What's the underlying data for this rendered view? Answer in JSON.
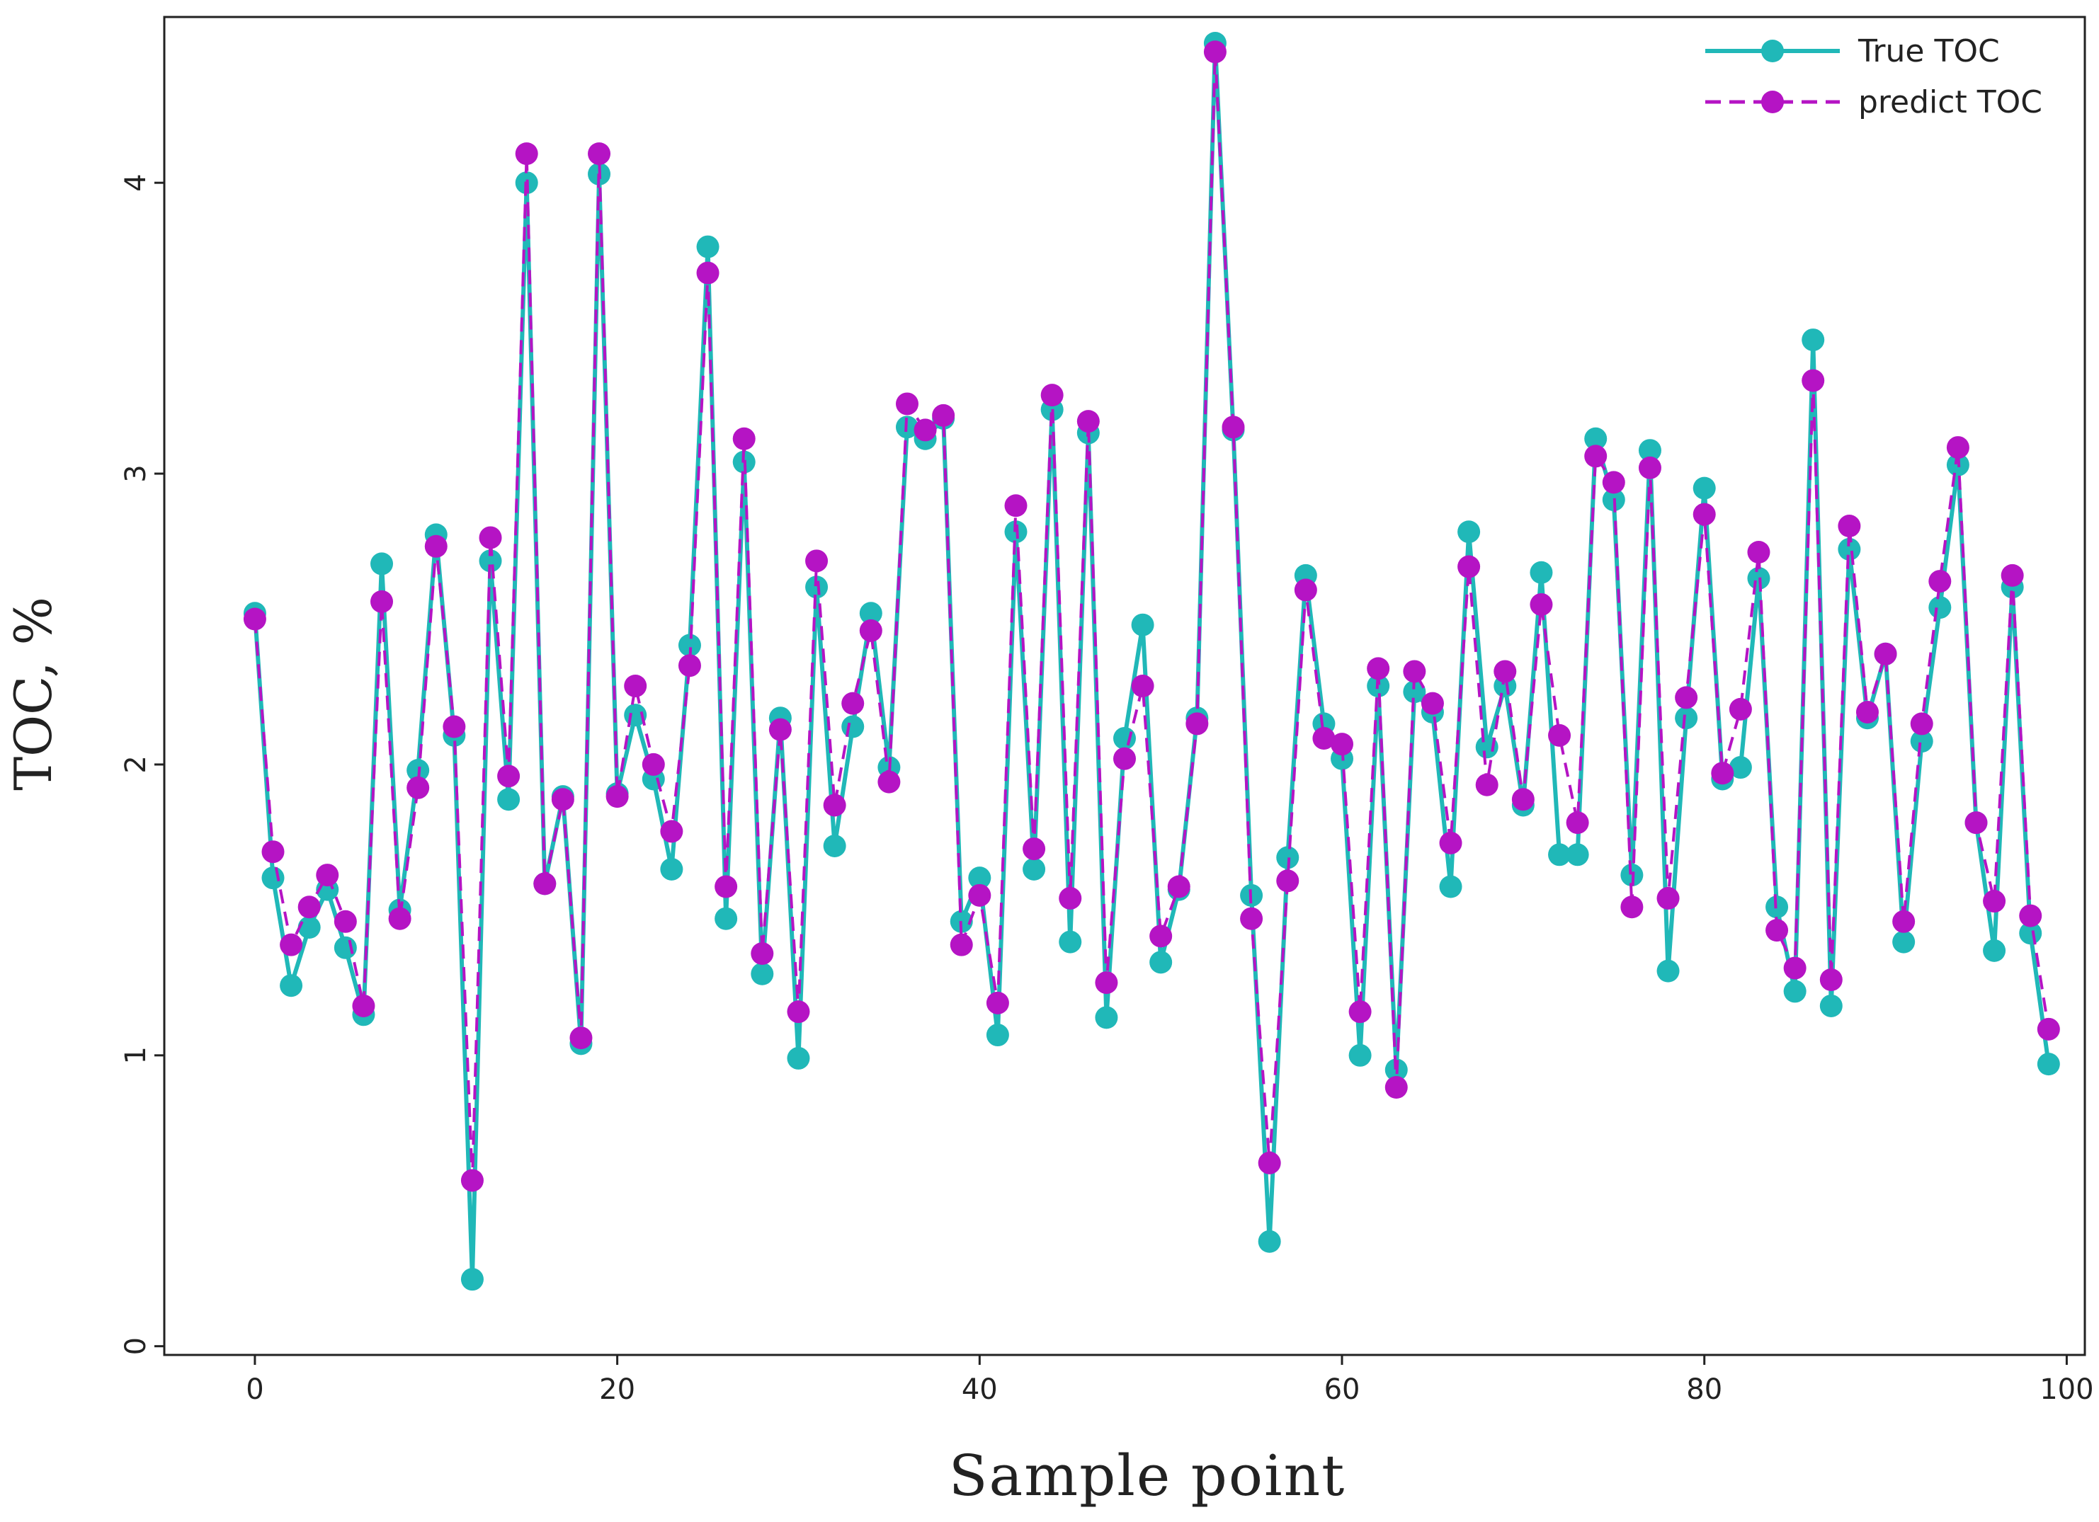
{
  "chart_data": {
    "type": "line",
    "title": "",
    "xlabel": "Sample point",
    "ylabel": "TOC, %",
    "xlim": [
      -5,
      101
    ],
    "ylim": [
      -0.03,
      4.57
    ],
    "xticks": [
      0,
      20,
      40,
      60,
      80,
      100
    ],
    "xtick_labels": [
      "0",
      "20",
      "40",
      "60",
      "80",
      "100"
    ],
    "yticks": [
      0,
      1,
      2,
      3,
      4
    ],
    "ytick_labels": [
      "0",
      "1",
      "2",
      "3",
      "4"
    ],
    "grid": false,
    "legend_position": "top-right",
    "series": [
      {
        "name": "True TOC",
        "color": "#20b8b8",
        "style": "solid",
        "values": [
          2.52,
          1.61,
          1.24,
          1.44,
          1.57,
          1.37,
          1.14,
          2.69,
          1.5,
          1.98,
          2.79,
          2.1,
          0.23,
          2.7,
          1.88,
          4.0,
          1.59,
          1.89,
          1.04,
          4.03,
          1.9,
          2.17,
          1.95,
          1.64,
          2.41,
          3.78,
          1.47,
          3.04,
          1.28,
          2.16,
          0.99,
          2.61,
          1.72,
          2.13,
          2.52,
          1.99,
          3.16,
          3.12,
          3.19,
          1.46,
          1.61,
          1.07,
          2.8,
          1.64,
          3.22,
          1.39,
          3.14,
          1.13,
          2.09,
          2.48,
          1.32,
          1.57,
          2.16,
          4.48,
          3.15,
          1.55,
          0.36,
          1.68,
          2.65,
          2.14,
          2.02,
          1.0,
          2.27,
          0.95,
          2.25,
          2.18,
          1.58,
          2.8,
          2.06,
          2.27,
          1.86,
          2.66,
          1.69,
          1.69,
          3.12,
          2.91,
          1.62,
          3.08,
          1.29,
          2.16,
          2.95,
          1.95,
          1.99,
          2.64,
          1.51,
          1.22,
          3.46,
          1.17,
          2.74,
          2.16,
          2.38,
          1.39,
          2.08,
          2.54,
          3.03,
          1.8,
          1.36,
          2.61,
          1.42,
          0.97
        ]
      },
      {
        "name": "predict TOC",
        "color": "#b514c4",
        "style": "dashed",
        "values": [
          2.5,
          1.7,
          1.38,
          1.51,
          1.62,
          1.46,
          1.17,
          2.56,
          1.47,
          1.92,
          2.75,
          2.13,
          0.57,
          2.78,
          1.96,
          4.1,
          1.59,
          1.88,
          1.06,
          4.1,
          1.89,
          2.27,
          2.0,
          1.77,
          2.34,
          3.69,
          1.58,
          3.12,
          1.35,
          2.12,
          1.15,
          2.7,
          1.86,
          2.21,
          2.46,
          1.94,
          3.24,
          3.15,
          3.2,
          1.38,
          1.55,
          1.18,
          2.89,
          1.71,
          3.27,
          1.54,
          3.18,
          1.25,
          2.02,
          2.27,
          1.41,
          1.58,
          2.14,
          4.45,
          3.16,
          1.47,
          0.63,
          1.6,
          2.6,
          2.09,
          2.07,
          1.15,
          2.33,
          0.89,
          2.32,
          2.21,
          1.73,
          2.68,
          1.93,
          2.32,
          1.88,
          2.55,
          2.1,
          1.8,
          3.06,
          2.97,
          1.51,
          3.02,
          1.54,
          2.23,
          2.86,
          1.97,
          2.19,
          2.73,
          1.43,
          1.3,
          3.32,
          1.26,
          2.82,
          2.18,
          2.38,
          1.46,
          2.14,
          2.63,
          3.09,
          1.8,
          1.53,
          2.65,
          1.48,
          1.09
        ]
      }
    ]
  }
}
